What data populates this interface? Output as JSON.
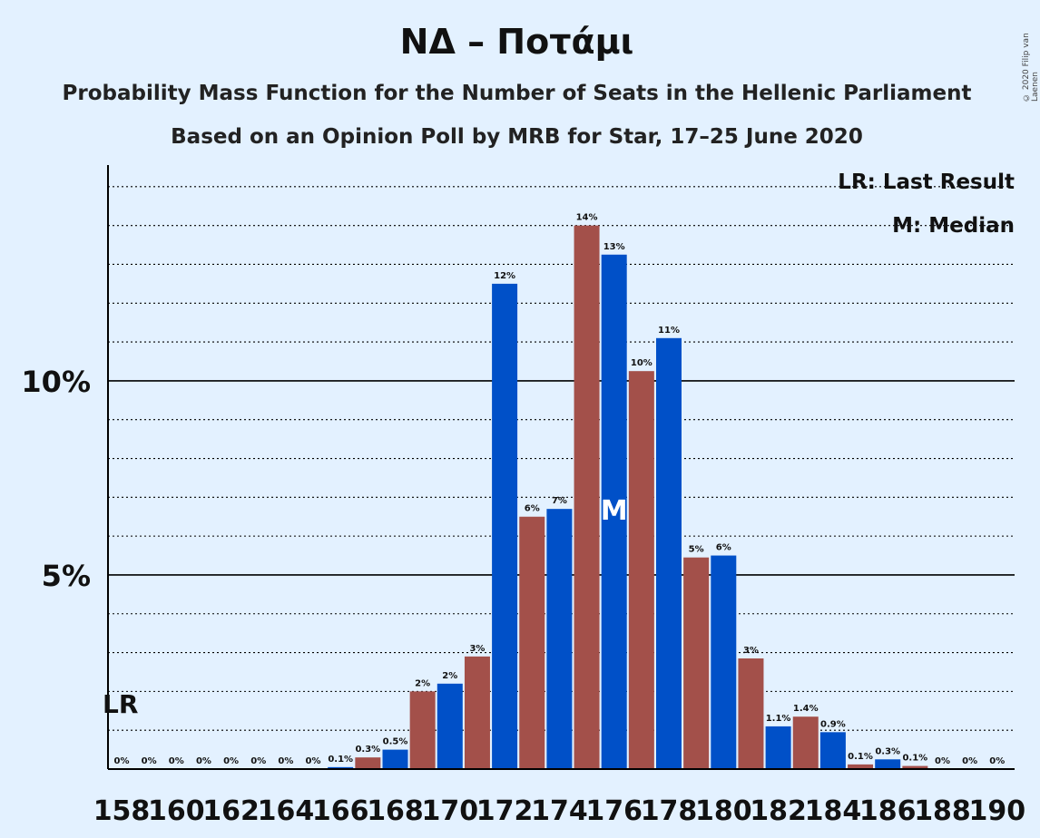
{
  "title": "ΝΔ – Ποτάμι",
  "subtitle1": "Probability Mass Function for the Number of Seats in the Hellenic Parliament",
  "subtitle2": "Based on an Opinion Poll by MRB for Star, 17–25 June 2020",
  "copyright": "© 2020 Filip van Laenen",
  "legend": {
    "last_result": "LR: Last Result",
    "median": "M: Median"
  },
  "markers": {
    "last_result": "LR",
    "median": "M",
    "last_result_seats": 158,
    "median_seats": 176
  },
  "colors": {
    "blue": "#0050c8",
    "red": "#a3504a",
    "background": "#e3f1ff"
  },
  "chart_data": {
    "type": "bar",
    "x": [
      158,
      159,
      160,
      161,
      162,
      163,
      164,
      165,
      166,
      167,
      168,
      169,
      170,
      171,
      172,
      173,
      174,
      175,
      176,
      177,
      178,
      179,
      180,
      181,
      182,
      183,
      184,
      185,
      186,
      187,
      188,
      189,
      190
    ],
    "values": [
      0,
      0,
      0,
      0,
      0,
      0,
      0,
      0,
      0.05,
      0.3,
      0.5,
      2.0,
      2.2,
      2.9,
      12.5,
      6.5,
      6.7,
      14.0,
      13.25,
      10.25,
      11.1,
      5.45,
      5.5,
      2.85,
      1.1,
      1.35,
      0.95,
      0.12,
      0.25,
      0.08,
      0,
      0,
      0
    ],
    "labels": [
      "0%",
      "0%",
      "0%",
      "0%",
      "0%",
      "0%",
      "0%",
      "0%",
      "0.1%",
      "0.3%",
      "0.5%",
      "2%",
      "2%",
      "3%",
      "12%",
      "6%",
      "7%",
      "14%",
      "13%",
      "10%",
      "11%",
      "5%",
      "6%",
      "3%",
      "1.1%",
      "1.4%",
      "0.9%",
      "0.1%",
      "0.3%",
      "0.1%",
      "0%",
      "0%",
      "0%"
    ],
    "tick_labels": [
      "158",
      "160",
      "162",
      "164",
      "166",
      "168",
      "170",
      "172",
      "174",
      "176",
      "178",
      "180",
      "182",
      "184",
      "186",
      "188",
      "190"
    ],
    "y_tick_labels": [
      "5%",
      "10%"
    ],
    "y_ticks": [
      5,
      10
    ],
    "ylim": [
      0,
      15.3
    ],
    "minor_grid_step": 1,
    "bar_color_parity": "even seats blue, odd seats red"
  }
}
